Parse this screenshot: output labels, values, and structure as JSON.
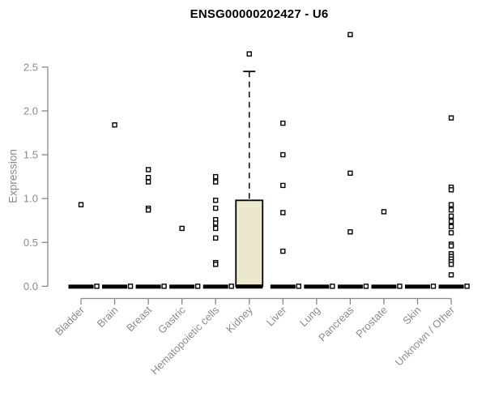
{
  "title": "ENSG00000202427 - U6",
  "chart_data": {
    "type": "box",
    "title": "ENSG00000202427 - U6",
    "ylabel": "Expression",
    "xlabel": "",
    "ylim": [
      0,
      2.5
    ],
    "yticks": [
      0,
      0.5,
      1,
      1.5,
      2,
      2.5
    ],
    "grid": false,
    "legend": "none",
    "categories": [
      "Bladder",
      "Brain",
      "Breast",
      "Gastric",
      "Hematopoietic cells",
      "Kidney",
      "Liver",
      "Lung",
      "Pancreas",
      "Prostate",
      "Skin",
      "Unknown / Other"
    ],
    "boxes": [
      {
        "category": "Bladder",
        "q1": 0,
        "median": 0,
        "q3": 0,
        "whisker_high": null,
        "outliers": [],
        "points": [
          0.93,
          0
        ]
      },
      {
        "category": "Brain",
        "q1": 0,
        "median": 0,
        "q3": 0,
        "whisker_high": null,
        "outliers": [],
        "points": [
          1.84,
          0
        ]
      },
      {
        "category": "Breast",
        "q1": 0,
        "median": 0,
        "q3": 0,
        "whisker_high": null,
        "outliers": [],
        "points": [
          1.33,
          1.24,
          1.19,
          0.89,
          0.87,
          0
        ]
      },
      {
        "category": "Gastric",
        "q1": 0,
        "median": 0,
        "q3": 0,
        "whisker_high": null,
        "outliers": [],
        "points": [
          0.66,
          0
        ]
      },
      {
        "category": "Hematopoietic cells",
        "q1": 0,
        "median": 0,
        "q3": 0,
        "whisker_high": null,
        "outliers": [],
        "points": [
          1.25,
          1.19,
          0.98,
          0.89,
          0.76,
          0.72,
          0.66,
          0.55,
          0.27,
          0.25,
          0
        ]
      },
      {
        "category": "Kidney",
        "q1": 0,
        "median": 0,
        "q3": 0.98,
        "whisker_high": 2.45,
        "outliers": [
          2.65
        ],
        "points": []
      },
      {
        "category": "Liver",
        "q1": 0,
        "median": 0,
        "q3": 0,
        "whisker_high": null,
        "outliers": [],
        "points": [
          1.86,
          1.5,
          1.15,
          0.84,
          0.4,
          0
        ]
      },
      {
        "category": "Lung",
        "q1": 0,
        "median": 0,
        "q3": 0,
        "whisker_high": null,
        "outliers": [],
        "points": [
          0
        ]
      },
      {
        "category": "Pancreas",
        "q1": 0,
        "median": 0,
        "q3": 0,
        "whisker_high": null,
        "outliers": [],
        "points": [
          2.87,
          1.29,
          0.62,
          0
        ]
      },
      {
        "category": "Prostate",
        "q1": 0,
        "median": 0,
        "q3": 0,
        "whisker_high": null,
        "outliers": [],
        "points": [
          0.85,
          0
        ]
      },
      {
        "category": "Skin",
        "q1": 0,
        "median": 0,
        "q3": 0,
        "whisker_high": null,
        "outliers": [],
        "points": [
          0
        ]
      },
      {
        "category": "Unknown / Other",
        "q1": 0,
        "median": 0,
        "q3": 0,
        "whisker_high": null,
        "outliers": [],
        "points": [
          1.92,
          1.13,
          1.1,
          0.93,
          0.87,
          0.8,
          0.74,
          0.68,
          0.61,
          0.48,
          0.46,
          0.37,
          0.34,
          0.31,
          0.28,
          0.25,
          0.13,
          0
        ]
      }
    ],
    "colors": {
      "box_fill": "#ece8cd",
      "box_border": "#000000",
      "median": "#000000",
      "point_stroke": "#000000",
      "point_fill": "#ffffff",
      "axis_line": "#888888",
      "axis_text": "#8c8c8c",
      "title_text": "#000000",
      "background": "#ffffff"
    }
  }
}
